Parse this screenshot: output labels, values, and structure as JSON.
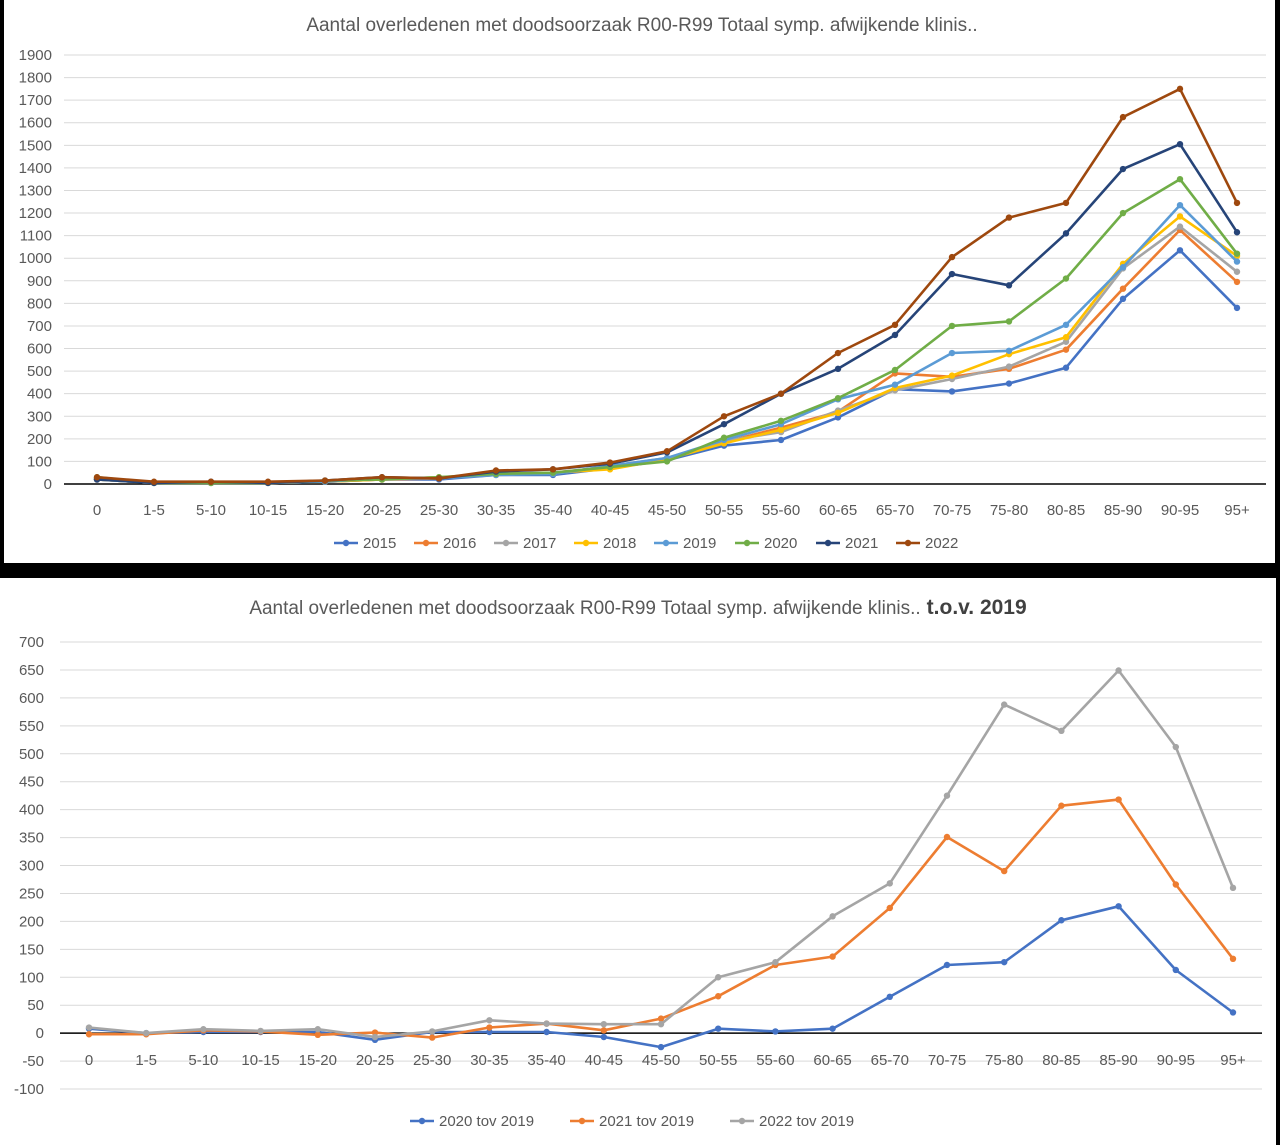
{
  "chart_data": [
    {
      "type": "line",
      "title": "Aantal overledenen met doodsoorzaak R00-R99 Totaal symp. afwijkende klinis..",
      "categories": [
        "0",
        "1-5",
        "5-10",
        "10-15",
        "15-20",
        "20-25",
        "25-30",
        "30-35",
        "35-40",
        "40-45",
        "45-50",
        "50-55",
        "55-60",
        "60-65",
        "65-70",
        "70-75",
        "75-80",
        "80-85",
        "85-90",
        "90-95",
        "95+"
      ],
      "ylim": [
        0,
        1900
      ],
      "ytick_step": 100,
      "yticks": [
        "0",
        "100",
        "200",
        "300",
        "400",
        "500",
        "600",
        "700",
        "800",
        "900",
        "1000",
        "1100",
        "1200",
        "1300",
        "1400",
        "1500",
        "1600",
        "1700",
        "1800",
        "1900"
      ],
      "grid": true,
      "legend": "bottom",
      "series": [
        {
          "name": "2015",
          "color": "#4472C4",
          "values": [
            20,
            5,
            5,
            5,
            10,
            20,
            20,
            40,
            40,
            70,
            105,
            170,
            195,
            295,
            420,
            410,
            445,
            515,
            820,
            1035,
            780
          ]
        },
        {
          "name": "2016",
          "color": "#ED7D31",
          "values": [
            20,
            5,
            5,
            5,
            10,
            20,
            25,
            45,
            50,
            75,
            110,
            185,
            250,
            320,
            490,
            475,
            510,
            595,
            865,
            1125,
            895
          ]
        },
        {
          "name": "2017",
          "color": "#A5A5A5",
          "values": [
            20,
            5,
            5,
            5,
            15,
            25,
            25,
            45,
            45,
            80,
            115,
            190,
            230,
            325,
            415,
            465,
            520,
            630,
            955,
            1140,
            940
          ]
        },
        {
          "name": "2018",
          "color": "#FFC000",
          "values": [
            20,
            5,
            5,
            5,
            10,
            20,
            30,
            40,
            50,
            65,
            110,
            180,
            240,
            315,
            425,
            480,
            575,
            650,
            975,
            1185,
            1010
          ]
        },
        {
          "name": "2019",
          "color": "#5B9BD5",
          "values": [
            20,
            5,
            5,
            5,
            10,
            25,
            25,
            40,
            45,
            80,
            115,
            195,
            265,
            375,
            440,
            580,
            590,
            705,
            960,
            1235,
            985
          ]
        },
        {
          "name": "2020",
          "color": "#70AD47",
          "values": [
            30,
            5,
            5,
            5,
            15,
            20,
            30,
            45,
            50,
            75,
            100,
            205,
            280,
            380,
            505,
            700,
            720,
            910,
            1200,
            1350,
            1020
          ]
        },
        {
          "name": "2021",
          "color": "#264478",
          "values": [
            20,
            5,
            10,
            5,
            15,
            30,
            25,
            55,
            65,
            90,
            140,
            265,
            400,
            510,
            660,
            930,
            880,
            1110,
            1395,
            1505,
            1115
          ]
        },
        {
          "name": "2022",
          "color": "#9E480E",
          "values": [
            30,
            10,
            10,
            10,
            15,
            30,
            25,
            60,
            65,
            95,
            145,
            300,
            400,
            580,
            705,
            1005,
            1180,
            1245,
            1625,
            1750,
            1245
          ]
        }
      ]
    },
    {
      "type": "line",
      "title": "Aantal overledenen met doodsoorzaak R00-R99 Totaal symp. afwijkende klinis..",
      "title_bold": "t.o.v. 2019",
      "categories": [
        "0",
        "1-5",
        "5-10",
        "10-15",
        "15-20",
        "20-25",
        "25-30",
        "30-35",
        "35-40",
        "40-45",
        "45-50",
        "50-55",
        "55-60",
        "60-65",
        "65-70",
        "70-75",
        "75-80",
        "80-85",
        "85-90",
        "90-95",
        "95+"
      ],
      "ylim": [
        -100,
        700
      ],
      "ytick_step": 50,
      "yticks": [
        "-100",
        "-50",
        "0",
        "50",
        "100",
        "150",
        "200",
        "250",
        "300",
        "350",
        "400",
        "450",
        "500",
        "550",
        "600",
        "650",
        "700"
      ],
      "grid": true,
      "legend": "bottom",
      "series": [
        {
          "name": "2020 tov 2019",
          "color": "#4472C4",
          "values": [
            8,
            0,
            2,
            2,
            2,
            -12,
            2,
            2,
            2,
            -7,
            -25,
            8,
            3,
            8,
            65,
            122,
            127,
            202,
            227,
            113,
            37
          ]
        },
        {
          "name": "2021 tov 2019",
          "color": "#ED7D31",
          "values": [
            -2,
            -2,
            5,
            3,
            -3,
            1,
            -8,
            10,
            17,
            5,
            26,
            66,
            122,
            137,
            224,
            351,
            290,
            407,
            418,
            266,
            133
          ]
        },
        {
          "name": "2022 tov 2019",
          "color": "#A5A5A5",
          "values": [
            10,
            0,
            7,
            4,
            7,
            -7,
            3,
            23,
            17,
            16,
            16,
            100,
            127,
            209,
            268,
            425,
            588,
            541,
            649,
            512,
            260
          ]
        }
      ]
    }
  ]
}
